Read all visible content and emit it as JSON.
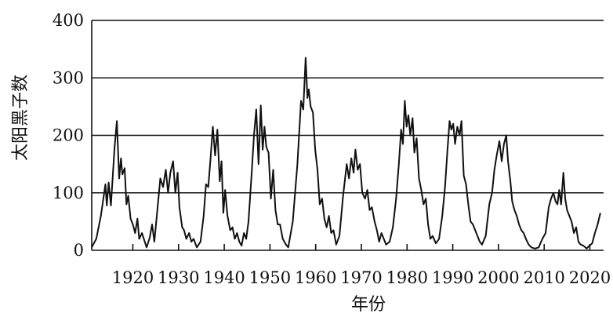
{
  "chart_data": {
    "type": "line",
    "title": "",
    "xlabel": "年份",
    "ylabel": "太阳黑子数",
    "xlim": [
      1911,
      2023
    ],
    "ylim": [
      0,
      400
    ],
    "yticks": [
      0,
      100,
      200,
      300,
      400
    ],
    "xticks": [
      1920,
      1930,
      1940,
      1950,
      1960,
      1970,
      1980,
      1990,
      2000,
      2010,
      2020
    ],
    "grid": "horizontal",
    "series": [
      {
        "values": [
          [
            1911.0,
            5
          ],
          [
            1912.0,
            20
          ],
          [
            1913.0,
            60
          ],
          [
            1914.0,
            115
          ],
          [
            1914.3,
            78
          ],
          [
            1914.7,
            118
          ],
          [
            1915.2,
            78
          ],
          [
            1916.0,
            180
          ],
          [
            1916.5,
            225
          ],
          [
            1917.0,
            125
          ],
          [
            1917.4,
            160
          ],
          [
            1917.7,
            132
          ],
          [
            1918.2,
            143
          ],
          [
            1918.6,
            80
          ],
          [
            1919.0,
            95
          ],
          [
            1919.5,
            55
          ],
          [
            1920.0,
            45
          ],
          [
            1920.5,
            30
          ],
          [
            1921.0,
            55
          ],
          [
            1921.4,
            20
          ],
          [
            1922.0,
            30
          ],
          [
            1923.0,
            5
          ],
          [
            1923.7,
            22
          ],
          [
            1924.2,
            45
          ],
          [
            1924.7,
            15
          ],
          [
            1925.3,
            65
          ],
          [
            1926.0,
            125
          ],
          [
            1926.6,
            110
          ],
          [
            1927.2,
            140
          ],
          [
            1927.7,
            100
          ],
          [
            1928.2,
            135
          ],
          [
            1928.8,
            155
          ],
          [
            1929.3,
            100
          ],
          [
            1929.8,
            135
          ],
          [
            1930.2,
            75
          ],
          [
            1930.8,
            40
          ],
          [
            1931.2,
            35
          ],
          [
            1931.7,
            20
          ],
          [
            1932.3,
            30
          ],
          [
            1932.8,
            15
          ],
          [
            1933.3,
            20
          ],
          [
            1934.0,
            5
          ],
          [
            1934.8,
            15
          ],
          [
            1935.5,
            60
          ],
          [
            1936.0,
            115
          ],
          [
            1936.5,
            110
          ],
          [
            1937.0,
            160
          ],
          [
            1937.5,
            215
          ],
          [
            1938.0,
            165
          ],
          [
            1938.5,
            210
          ],
          [
            1939.0,
            120
          ],
          [
            1939.4,
            155
          ],
          [
            1939.8,
            65
          ],
          [
            1940.2,
            105
          ],
          [
            1940.7,
            60
          ],
          [
            1941.3,
            35
          ],
          [
            1941.8,
            40
          ],
          [
            1942.3,
            20
          ],
          [
            1942.8,
            30
          ],
          [
            1943.3,
            15
          ],
          [
            1943.8,
            8
          ],
          [
            1944.3,
            30
          ],
          [
            1944.8,
            20
          ],
          [
            1945.3,
            50
          ],
          [
            1946.0,
            135
          ],
          [
            1946.5,
            200
          ],
          [
            1947.0,
            245
          ],
          [
            1947.5,
            150
          ],
          [
            1948.0,
            252
          ],
          [
            1948.4,
            175
          ],
          [
            1948.8,
            215
          ],
          [
            1949.2,
            180
          ],
          [
            1949.7,
            170
          ],
          [
            1950.2,
            90
          ],
          [
            1950.7,
            140
          ],
          [
            1951.2,
            70
          ],
          [
            1951.7,
            45
          ],
          [
            1952.2,
            45
          ],
          [
            1952.8,
            20
          ],
          [
            1953.5,
            10
          ],
          [
            1954.0,
            5
          ],
          [
            1955.0,
            50
          ],
          [
            1956.0,
            150
          ],
          [
            1956.8,
            260
          ],
          [
            1957.3,
            245
          ],
          [
            1957.8,
            335
          ],
          [
            1958.2,
            265
          ],
          [
            1958.5,
            280
          ],
          [
            1958.9,
            250
          ],
          [
            1959.4,
            240
          ],
          [
            1959.9,
            175
          ],
          [
            1960.4,
            140
          ],
          [
            1960.9,
            80
          ],
          [
            1961.4,
            90
          ],
          [
            1961.9,
            55
          ],
          [
            1962.4,
            40
          ],
          [
            1962.9,
            60
          ],
          [
            1963.4,
            30
          ],
          [
            1963.9,
            35
          ],
          [
            1964.5,
            10
          ],
          [
            1965.2,
            25
          ],
          [
            1966.0,
            95
          ],
          [
            1966.8,
            150
          ],
          [
            1967.3,
            125
          ],
          [
            1967.8,
            160
          ],
          [
            1968.3,
            135
          ],
          [
            1968.7,
            175
          ],
          [
            1969.2,
            140
          ],
          [
            1969.7,
            150
          ],
          [
            1970.2,
            100
          ],
          [
            1970.8,
            90
          ],
          [
            1971.3,
            105
          ],
          [
            1971.8,
            70
          ],
          [
            1972.3,
            75
          ],
          [
            1972.9,
            50
          ],
          [
            1973.4,
            35
          ],
          [
            1973.9,
            15
          ],
          [
            1974.4,
            30
          ],
          [
            1974.9,
            20
          ],
          [
            1975.4,
            10
          ],
          [
            1976.2,
            15
          ],
          [
            1976.9,
            40
          ],
          [
            1977.6,
            90
          ],
          [
            1978.2,
            150
          ],
          [
            1978.7,
            210
          ],
          [
            1979.1,
            185
          ],
          [
            1979.5,
            260
          ],
          [
            1979.9,
            215
          ],
          [
            1980.3,
            235
          ],
          [
            1980.7,
            200
          ],
          [
            1981.2,
            230
          ],
          [
            1981.6,
            170
          ],
          [
            1982.1,
            195
          ],
          [
            1982.6,
            125
          ],
          [
            1983.1,
            105
          ],
          [
            1983.6,
            80
          ],
          [
            1984.1,
            90
          ],
          [
            1984.6,
            45
          ],
          [
            1985.1,
            20
          ],
          [
            1985.6,
            25
          ],
          [
            1986.3,
            12
          ],
          [
            1987.0,
            20
          ],
          [
            1987.7,
            60
          ],
          [
            1988.3,
            110
          ],
          [
            1988.8,
            170
          ],
          [
            1989.3,
            225
          ],
          [
            1989.7,
            210
          ],
          [
            1990.1,
            220
          ],
          [
            1990.5,
            185
          ],
          [
            1991.0,
            215
          ],
          [
            1991.5,
            200
          ],
          [
            1991.9,
            225
          ],
          [
            1992.4,
            130
          ],
          [
            1992.9,
            115
          ],
          [
            1993.4,
            80
          ],
          [
            1993.9,
            50
          ],
          [
            1994.4,
            45
          ],
          [
            1994.9,
            35
          ],
          [
            1995.4,
            25
          ],
          [
            1995.9,
            15
          ],
          [
            1996.4,
            10
          ],
          [
            1997.2,
            25
          ],
          [
            1998.0,
            80
          ],
          [
            1998.6,
            100
          ],
          [
            1999.1,
            140
          ],
          [
            1999.6,
            165
          ],
          [
            2000.2,
            190
          ],
          [
            2000.7,
            155
          ],
          [
            2001.2,
            185
          ],
          [
            2001.7,
            200
          ],
          [
            2002.1,
            155
          ],
          [
            2002.6,
            120
          ],
          [
            2003.0,
            85
          ],
          [
            2003.5,
            70
          ],
          [
            2004.0,
            60
          ],
          [
            2004.5,
            45
          ],
          [
            2005.0,
            35
          ],
          [
            2005.5,
            30
          ],
          [
            2006.0,
            20
          ],
          [
            2006.6,
            10
          ],
          [
            2007.2,
            5
          ],
          [
            2008.0,
            3
          ],
          [
            2008.8,
            5
          ],
          [
            2009.6,
            20
          ],
          [
            2010.3,
            30
          ],
          [
            2011.0,
            75
          ],
          [
            2011.5,
            90
          ],
          [
            2012.0,
            100
          ],
          [
            2012.5,
            85
          ],
          [
            2012.9,
            80
          ],
          [
            2013.3,
            105
          ],
          [
            2013.7,
            80
          ],
          [
            2014.2,
            135
          ],
          [
            2014.6,
            90
          ],
          [
            2015.0,
            70
          ],
          [
            2015.5,
            60
          ],
          [
            2016.0,
            50
          ],
          [
            2016.5,
            30
          ],
          [
            2017.0,
            40
          ],
          [
            2017.5,
            15
          ],
          [
            2018.0,
            10
          ],
          [
            2018.6,
            8
          ],
          [
            2019.3,
            3
          ],
          [
            2019.9,
            8
          ],
          [
            2020.5,
            12
          ],
          [
            2021.1,
            30
          ],
          [
            2021.7,
            45
          ],
          [
            2022.3,
            65
          ]
        ]
      }
    ]
  }
}
